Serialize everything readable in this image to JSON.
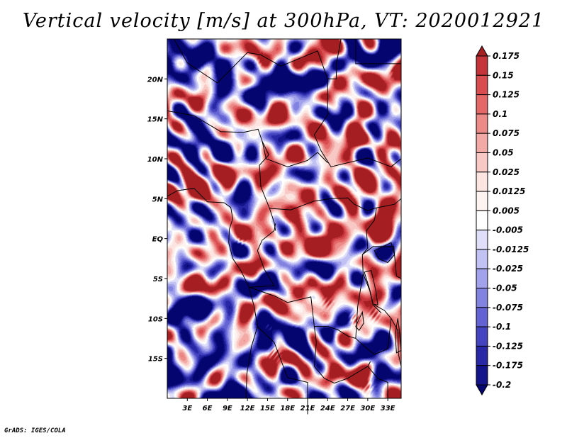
{
  "title": "Vertical velocity [m/s] at 300hPa, VT: 2020012921",
  "credit": "GrADS: IGES/COLA",
  "chart_data": {
    "type": "heatmap",
    "title": "Vertical velocity [m/s] at 300hPa, VT: 2020012921",
    "variable": "Vertical velocity",
    "units": "m/s",
    "level": "300hPa",
    "valid_time": "2020012921",
    "xlim": [
      0,
      35
    ],
    "ylim": [
      -20,
      25
    ],
    "x_ticks": [
      3,
      6,
      9,
      12,
      15,
      18,
      21,
      24,
      27,
      30,
      33
    ],
    "x_tick_labels": [
      "3E",
      "6E",
      "9E",
      "12E",
      "15E",
      "18E",
      "21E",
      "24E",
      "27E",
      "30E",
      "33E"
    ],
    "y_ticks": [
      20,
      15,
      10,
      5,
      0,
      -5,
      -10,
      -15
    ],
    "y_tick_labels": [
      "20N",
      "15N",
      "10N",
      "5N",
      "EQ",
      "5S",
      "10S",
      "15S"
    ],
    "colorbar": {
      "labels": [
        "0.175",
        "0.15",
        "0.125",
        "0.1",
        "0.075",
        "0.05",
        "0.025",
        "0.0125",
        "0.005",
        "-0.005",
        "-0.0125",
        "-0.025",
        "-0.05",
        "-0.075",
        "-0.1",
        "-0.125",
        "-0.175",
        "-0.2"
      ],
      "colors": [
        "#a41e22",
        "#c4343a",
        "#d94c50",
        "#e46868",
        "#ec8a88",
        "#f3aaa6",
        "#f8c8c4",
        "#fce4e0",
        "#fdf3f0",
        "#ffffff",
        "#dfdffa",
        "#c1c1f3",
        "#a1a1ec",
        "#8282e1",
        "#6363d4",
        "#4444c1",
        "#2828a6",
        "#14148a",
        "#050570"
      ]
    }
  }
}
